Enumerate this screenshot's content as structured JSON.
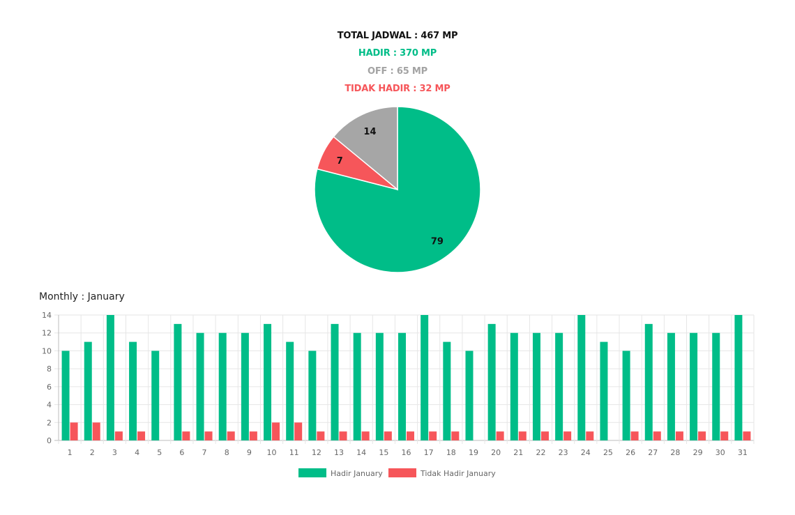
{
  "summary": {
    "total": "TOTAL JADWAL : 467 MP",
    "hadir": "HADIR : 370 MP",
    "off": "OFF : 65 MP",
    "tidak_hadir": "TIDAK HADIR : 32 MP"
  },
  "monthly_title": "Monthly : January",
  "colors": {
    "hadir": "#00bd88",
    "tidak_hadir": "#f6565a",
    "off": "#a6a6a6"
  },
  "chart_data": [
    {
      "type": "pie",
      "slices": [
        {
          "label": "HADIR",
          "value": 79,
          "color": "#00bd88"
        },
        {
          "label": "TIDAK HADIR",
          "value": 7,
          "color": "#f6565a"
        },
        {
          "label": "OFF",
          "value": 14,
          "color": "#a6a6a6"
        }
      ]
    },
    {
      "type": "bar",
      "categories": [
        "1",
        "2",
        "3",
        "4",
        "5",
        "6",
        "7",
        "8",
        "9",
        "10",
        "11",
        "12",
        "13",
        "14",
        "15",
        "16",
        "17",
        "18",
        "19",
        "20",
        "21",
        "22",
        "23",
        "24",
        "25",
        "26",
        "27",
        "28",
        "29",
        "30",
        "31"
      ],
      "series": [
        {
          "name": "Hadir January",
          "color": "#00bd88",
          "values": [
            10,
            11,
            14,
            11,
            10,
            13,
            12,
            12,
            12,
            13,
            11,
            10,
            13,
            12,
            12,
            12,
            14,
            11,
            10,
            13,
            12,
            12,
            12,
            14,
            11,
            10,
            13,
            12,
            12,
            12,
            14
          ]
        },
        {
          "name": "Tidak Hadir January",
          "color": "#f6565a",
          "values": [
            2,
            2,
            1,
            1,
            0,
            1,
            1,
            1,
            1,
            2,
            2,
            1,
            1,
            1,
            1,
            1,
            1,
            1,
            0,
            1,
            1,
            1,
            1,
            1,
            0,
            1,
            1,
            1,
            1,
            1,
            1
          ]
        }
      ],
      "yticks": [
        "0",
        "2",
        "4",
        "6",
        "8",
        "10",
        "12",
        "14"
      ],
      "ylim": [
        0,
        14
      ],
      "grid": true,
      "legend": "bottom-center"
    }
  ]
}
